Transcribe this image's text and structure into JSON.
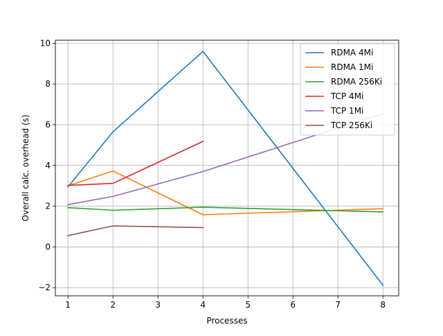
{
  "chart_data": {
    "type": "line",
    "title": "",
    "xlabel": "Processes",
    "ylabel": "Overall calc. overhead (s)",
    "xlim": [
      0.72,
      8.35
    ],
    "ylim": [
      -2.4,
      10.15
    ],
    "x_ticks": [
      1,
      2,
      3,
      4,
      5,
      6,
      7,
      8
    ],
    "y_ticks": [
      -2,
      0,
      2,
      4,
      6,
      8,
      10
    ],
    "y_tick_labels": [
      "−2",
      "0",
      "2",
      "4",
      "6",
      "8",
      "10"
    ],
    "grid": true,
    "legend_position": "top-right",
    "series": [
      {
        "name": "RDMA 4Mi",
        "color": "#1f77b4",
        "x": [
          1,
          2,
          4,
          8
        ],
        "y": [
          2.95,
          5.65,
          9.6,
          -1.88
        ]
      },
      {
        "name": "RDMA 1Mi",
        "color": "#ff7f0e",
        "x": [
          1,
          2,
          4,
          8
        ],
        "y": [
          3.0,
          3.73,
          1.58,
          1.88
        ]
      },
      {
        "name": "RDMA 256Ki",
        "color": "#2ca02c",
        "x": [
          1,
          2,
          4,
          8
        ],
        "y": [
          1.93,
          1.8,
          1.95,
          1.72
        ]
      },
      {
        "name": "TCP 4Mi",
        "color": "#d62728",
        "x": [
          1,
          2,
          4
        ],
        "y": [
          3.02,
          3.12,
          5.18
        ]
      },
      {
        "name": "TCP 1Mi",
        "color": "#9467bd",
        "x": [
          1,
          2,
          4,
          8
        ],
        "y": [
          2.08,
          2.48,
          3.7,
          6.55
        ]
      },
      {
        "name": "TCP 256Ki",
        "color": "#8c564b",
        "x": [
          1,
          2,
          4
        ],
        "y": [
          0.56,
          1.03,
          0.95
        ]
      }
    ]
  }
}
